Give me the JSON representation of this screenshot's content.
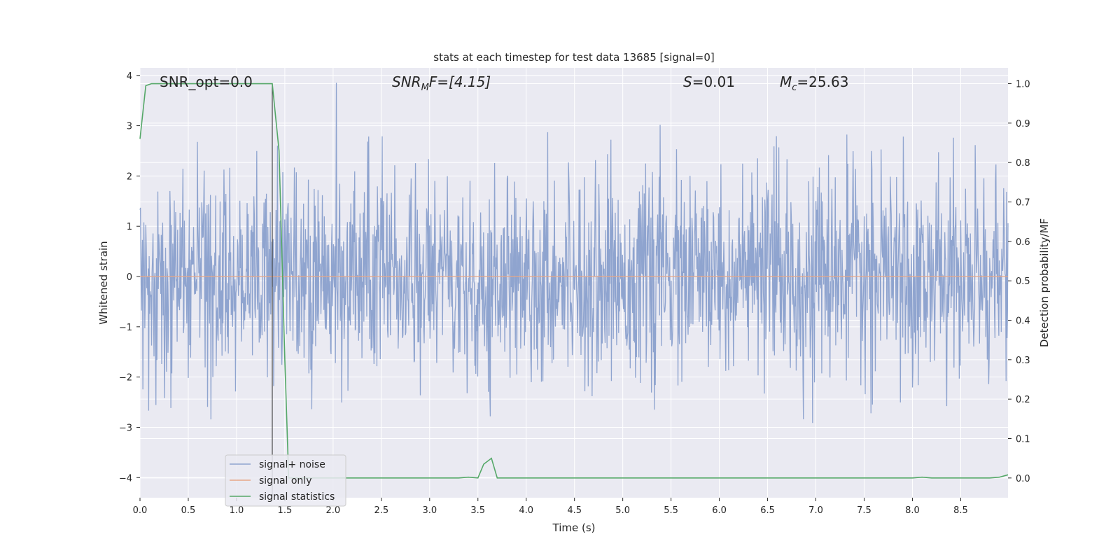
{
  "chart_data": {
    "type": "line",
    "title": "stats at each timestep for test data 13685 [signal=0]",
    "xlabel": "Time (s)",
    "ylabel": "Whitened strain",
    "y2label": "Detection probability/MF",
    "xlim": [
      0.0,
      8.99
    ],
    "ylim": [
      -4.4,
      4.15
    ],
    "y2lim": [
      -0.05,
      1.04
    ],
    "x_ticks": [
      "0.0",
      "0.5",
      "1.0",
      "1.5",
      "2.0",
      "2.5",
      "3.0",
      "3.5",
      "4.0",
      "4.5",
      "5.0",
      "5.5",
      "6.0",
      "6.5",
      "7.0",
      "7.5",
      "8.0",
      "8.5"
    ],
    "y_ticks": [
      "4",
      "3",
      "2",
      "1",
      "0",
      "−1",
      "−2",
      "−3",
      "−4"
    ],
    "y2_ticks": [
      "1.0",
      "0.9",
      "0.8",
      "0.7",
      "0.6",
      "0.5",
      "0.4",
      "0.3",
      "0.2",
      "0.1",
      "0.0"
    ],
    "grid": true,
    "legend_position": "lower-left",
    "annotations": {
      "snr_opt": "SNR_opt=0.0",
      "snr_mf_sym": "SNR",
      "snr_mf_sub": "M",
      "snr_mf_rest": "F=[4.15]",
      "s_sym": "S",
      "s_rest": "=0.01",
      "mc_sym": "M",
      "mc_sub": "c",
      "mc_rest": "=25.63"
    },
    "vline_x": 1.37,
    "series": [
      {
        "name": "signal+ noise",
        "color": "#8fa4cf",
        "axis": "left",
        "kind": "noise",
        "amplitude_std": 1.0,
        "n_samples": 1800
      },
      {
        "name": "signal only",
        "color": "#e8a888",
        "axis": "left",
        "x": [
          0.0,
          8.99
        ],
        "y": [
          0.0,
          0.0
        ]
      },
      {
        "name": "signal statistics",
        "color": "#55a868",
        "axis": "right",
        "x": [
          0.0,
          0.06,
          0.12,
          0.5,
          1.0,
          1.3,
          1.37,
          1.44,
          1.5,
          1.54,
          1.6,
          2.0,
          2.5,
          3.0,
          3.3,
          3.4,
          3.5,
          3.56,
          3.64,
          3.7,
          3.8,
          4.0,
          5.0,
          6.0,
          7.0,
          8.0,
          8.1,
          8.2,
          8.5,
          8.8,
          8.9,
          8.99
        ],
        "y": [
          0.86,
          0.995,
          1.0,
          1.0,
          1.0,
          1.0,
          1.0,
          0.83,
          0.3,
          0.0,
          0.0,
          0.0,
          0.0,
          0.0,
          0.0,
          0.002,
          0.0,
          0.035,
          0.05,
          0.0,
          0.0,
          0.0,
          0.0,
          0.0,
          0.0,
          0.0,
          0.002,
          0.0,
          0.0,
          0.0,
          0.002,
          0.008
        ]
      }
    ]
  }
}
